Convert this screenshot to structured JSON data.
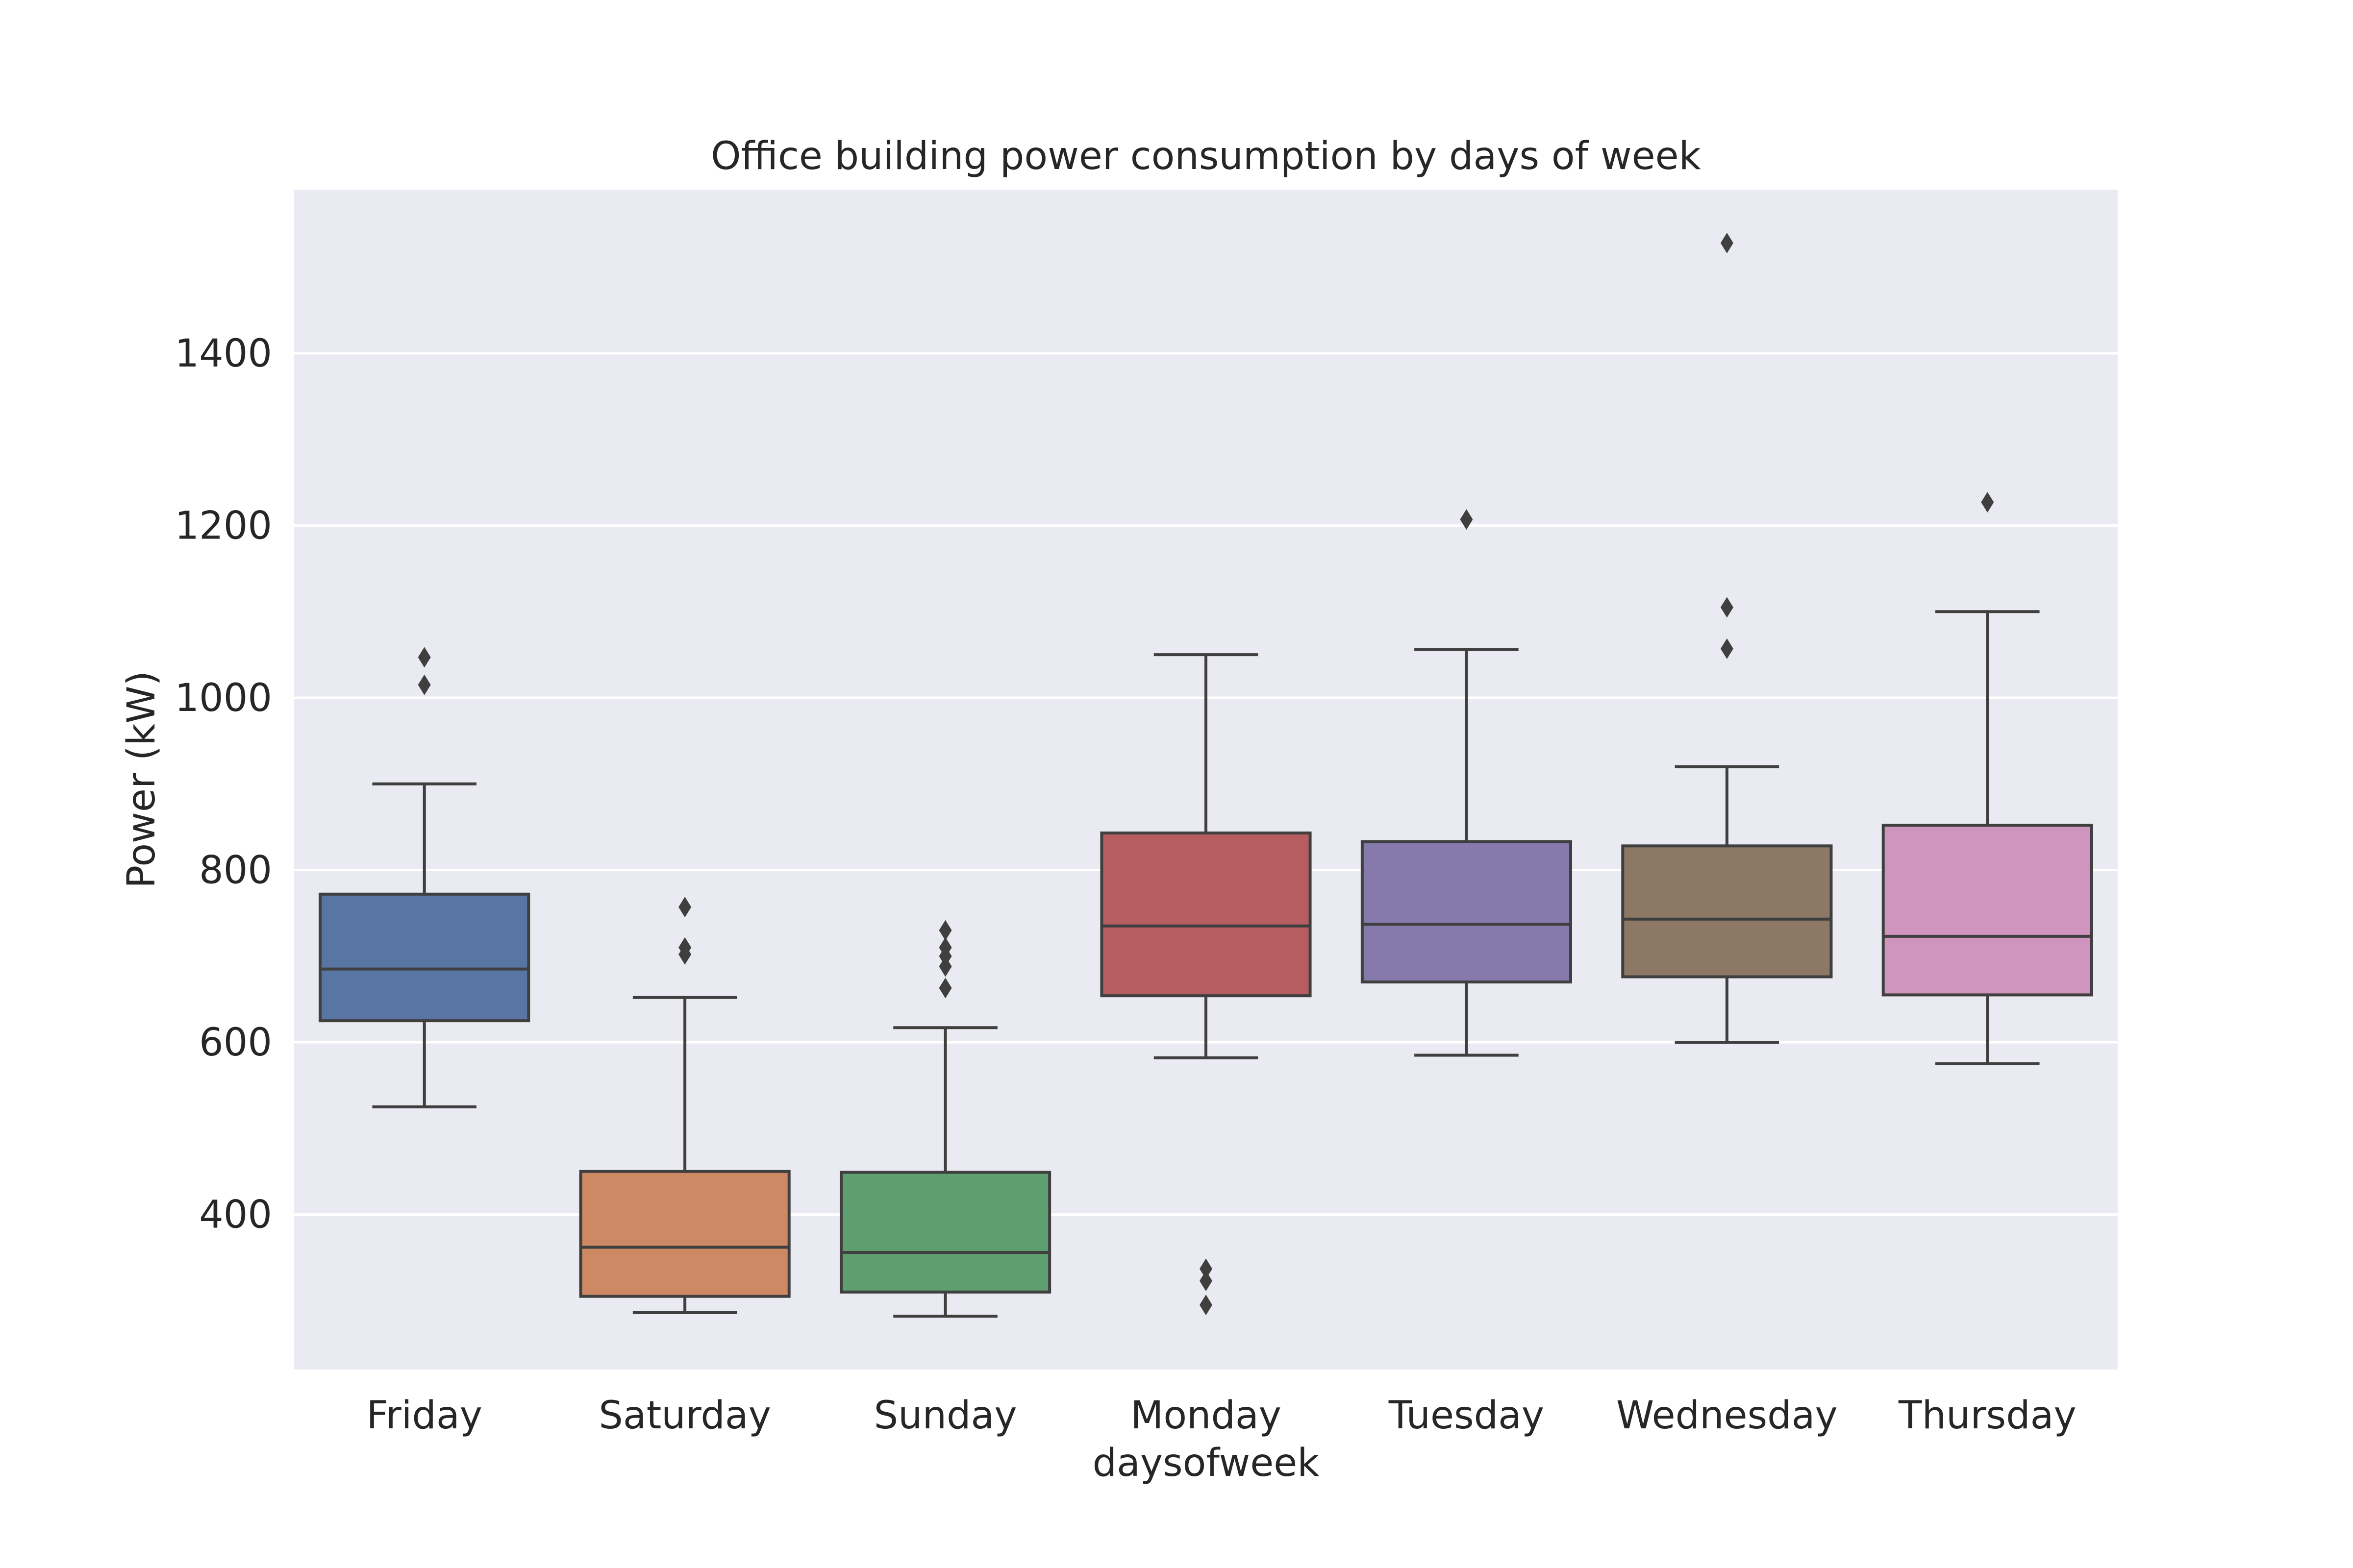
{
  "chart_data": {
    "type": "box",
    "title": "Office building power consumption by days of week",
    "xlabel": "daysofweek",
    "ylabel": "Power (kW)",
    "ylim": [
      220,
      1590
    ],
    "yticks": [
      400,
      600,
      800,
      1000,
      1200,
      1400
    ],
    "grid": true,
    "colors": {
      "background": "#eaeaf2",
      "grid": "#ffffff",
      "outline": "#3f3f3f"
    },
    "categories": [
      "Friday",
      "Saturday",
      "Sunday",
      "Monday",
      "Tuesday",
      "Wednesday",
      "Thursday"
    ],
    "boxes": [
      {
        "category": "Friday",
        "color": "#5875a4",
        "whisker_low": 525,
        "q1": 625,
        "median": 685,
        "q3": 772,
        "whisker_high": 900,
        "outliers": [
          1015,
          1047
        ]
      },
      {
        "category": "Saturday",
        "color": "#cc8963",
        "whisker_low": 286,
        "q1": 305,
        "median": 362,
        "q3": 450,
        "whisker_high": 652,
        "outliers": [
          702,
          710,
          757
        ]
      },
      {
        "category": "Sunday",
        "color": "#5f9e6e",
        "whisker_low": 282,
        "q1": 310,
        "median": 356,
        "q3": 449,
        "whisker_high": 617,
        "outliers": [
          663,
          688,
          700,
          710,
          730
        ]
      },
      {
        "category": "Monday",
        "color": "#b55d60",
        "whisker_low": 582,
        "q1": 654,
        "median": 735,
        "q3": 843,
        "whisker_high": 1050,
        "outliers": [
          295,
          323,
          337
        ]
      },
      {
        "category": "Tuesday",
        "color": "#857aab",
        "whisker_low": 585,
        "q1": 670,
        "median": 737,
        "q3": 833,
        "whisker_high": 1056,
        "outliers": [
          1207
        ]
      },
      {
        "category": "Wednesday",
        "color": "#8d7866",
        "whisker_low": 600,
        "q1": 676,
        "median": 743,
        "q3": 828,
        "whisker_high": 920,
        "outliers": [
          1057,
          1105,
          1528
        ]
      },
      {
        "category": "Thursday",
        "color": "#d095bf",
        "whisker_low": 575,
        "q1": 655,
        "median": 723,
        "q3": 852,
        "whisker_high": 1100,
        "outliers": [
          1227
        ]
      }
    ]
  }
}
